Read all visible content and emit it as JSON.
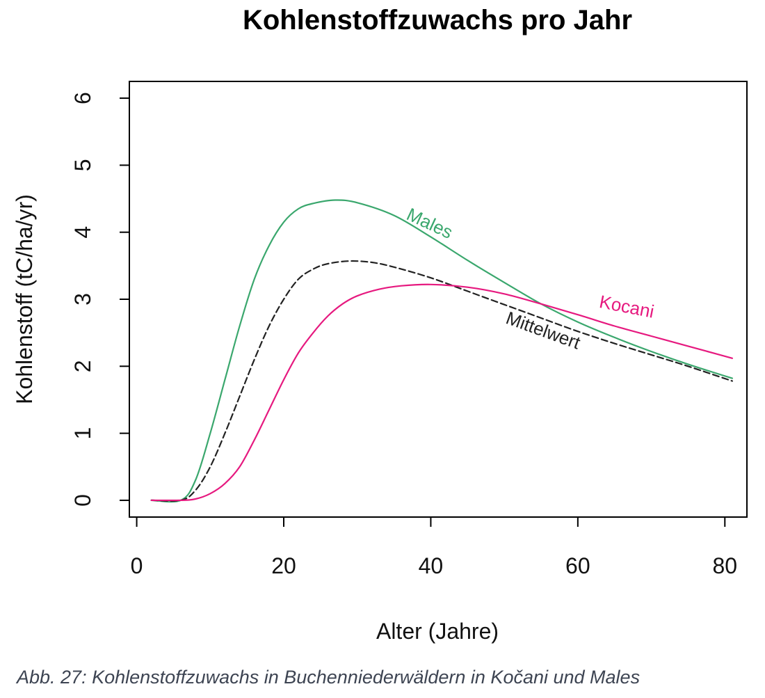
{
  "chart_data": {
    "type": "line",
    "title": "Kohlenstoffzuwachs pro Jahr",
    "xlabel": "Alter (Jahre)",
    "ylabel": "Kohlenstoff (tC/ha/yr)",
    "xlim": [
      -1,
      83
    ],
    "ylim": [
      -0.25,
      6.25
    ],
    "xticks": [
      0,
      20,
      40,
      60,
      80
    ],
    "yticks": [
      0,
      1,
      2,
      3,
      4,
      5,
      6
    ],
    "grid": false,
    "legend": "none",
    "series": [
      {
        "name": "Males",
        "color": "#3aa76d",
        "dash": "solid",
        "points": [
          [
            2,
            0
          ],
          [
            6,
            0
          ],
          [
            8,
            0.3
          ],
          [
            10,
            1.0
          ],
          [
            12,
            1.8
          ],
          [
            14,
            2.6
          ],
          [
            16,
            3.3
          ],
          [
            18,
            3.8
          ],
          [
            20,
            4.15
          ],
          [
            22,
            4.35
          ],
          [
            24,
            4.43
          ],
          [
            27,
            4.48
          ],
          [
            30,
            4.44
          ],
          [
            35,
            4.25
          ],
          [
            40,
            3.93
          ],
          [
            45,
            3.58
          ],
          [
            50,
            3.25
          ],
          [
            55,
            2.93
          ],
          [
            60,
            2.66
          ],
          [
            65,
            2.43
          ],
          [
            70,
            2.22
          ],
          [
            75,
            2.03
          ],
          [
            81,
            1.82
          ]
        ]
      },
      {
        "name": "Mittelwert",
        "color": "#222222",
        "dash": "dashed",
        "points": [
          [
            2,
            0
          ],
          [
            6,
            0
          ],
          [
            8,
            0.15
          ],
          [
            10,
            0.5
          ],
          [
            12,
            1.0
          ],
          [
            14,
            1.55
          ],
          [
            16,
            2.1
          ],
          [
            18,
            2.6
          ],
          [
            20,
            3.0
          ],
          [
            22,
            3.3
          ],
          [
            24,
            3.45
          ],
          [
            26,
            3.53
          ],
          [
            29,
            3.57
          ],
          [
            32,
            3.55
          ],
          [
            35,
            3.48
          ],
          [
            40,
            3.32
          ],
          [
            45,
            3.12
          ],
          [
            50,
            2.92
          ],
          [
            55,
            2.72
          ],
          [
            60,
            2.52
          ],
          [
            65,
            2.34
          ],
          [
            70,
            2.17
          ],
          [
            75,
            2.0
          ],
          [
            81,
            1.78
          ]
        ]
      },
      {
        "name": "Kocani",
        "color": "#e6197f",
        "dash": "solid",
        "points": [
          [
            2,
            0
          ],
          [
            6,
            0
          ],
          [
            8,
            0.02
          ],
          [
            10,
            0.1
          ],
          [
            12,
            0.25
          ],
          [
            14,
            0.5
          ],
          [
            16,
            0.9
          ],
          [
            18,
            1.35
          ],
          [
            20,
            1.8
          ],
          [
            22,
            2.2
          ],
          [
            24,
            2.5
          ],
          [
            26,
            2.75
          ],
          [
            28,
            2.93
          ],
          [
            30,
            3.05
          ],
          [
            33,
            3.15
          ],
          [
            36,
            3.2
          ],
          [
            40,
            3.22
          ],
          [
            45,
            3.18
          ],
          [
            50,
            3.08
          ],
          [
            55,
            2.93
          ],
          [
            60,
            2.77
          ],
          [
            65,
            2.6
          ],
          [
            70,
            2.45
          ],
          [
            75,
            2.3
          ],
          [
            81,
            2.12
          ]
        ]
      }
    ],
    "annotations": [
      {
        "text": "Males",
        "x": 39.5,
        "y": 4.05,
        "angle": 25,
        "color": "#3aa76d"
      },
      {
        "text": "Kocani",
        "x": 66.5,
        "y": 2.8,
        "angle": 11,
        "color": "#e6197f"
      },
      {
        "text": "Mittelwert",
        "x": 55,
        "y": 2.45,
        "angle": 20,
        "color": "#222222"
      }
    ]
  },
  "caption": "Abb. 27: Kohlenstoffzuwachs in Buchenniederwäldern in Kočani und Males"
}
